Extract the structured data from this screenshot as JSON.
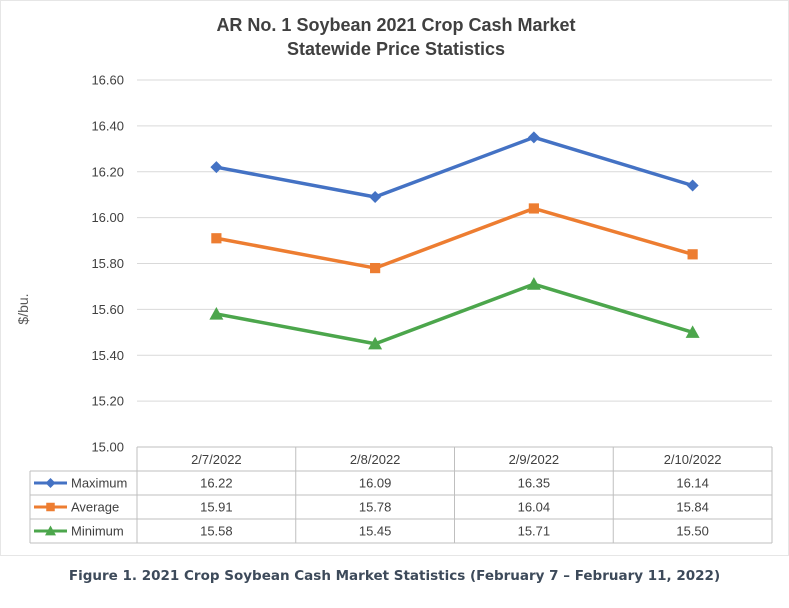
{
  "chart_data": {
    "type": "line",
    "title": [
      "AR No. 1 Soybean 2021 Crop Cash Market",
      "Statewide Price Statistics"
    ],
    "ylabel": "$/bu.",
    "ylim": [
      15.0,
      16.6
    ],
    "yticks": [
      "15.00",
      "15.20",
      "15.40",
      "15.60",
      "15.80",
      "16.00",
      "16.20",
      "16.40",
      "16.60"
    ],
    "categories": [
      "2/7/2022",
      "2/8/2022",
      "2/9/2022",
      "2/10/2022"
    ],
    "grid": true,
    "data_table": true,
    "series": [
      {
        "name": "Maximum",
        "color": "#4472C4",
        "marker": "diamond",
        "values": [
          16.22,
          16.09,
          16.35,
          16.14
        ],
        "labels": [
          "16.22",
          "16.09",
          "16.35",
          "16.14"
        ]
      },
      {
        "name": "Average",
        "color": "#ED7D31",
        "marker": "square",
        "values": [
          15.91,
          15.78,
          16.04,
          15.84
        ],
        "labels": [
          "15.91",
          "15.78",
          "16.04",
          "15.84"
        ]
      },
      {
        "name": "Minimum",
        "color": "#4CA64C",
        "marker": "triangle",
        "values": [
          15.58,
          15.45,
          15.71,
          15.5
        ],
        "labels": [
          "15.58",
          "15.45",
          "15.71",
          "15.50"
        ]
      }
    ]
  },
  "caption": "Figure 1.  2021 Crop Soybean Cash Market Statistics (February 7 – February 11, 2022)"
}
